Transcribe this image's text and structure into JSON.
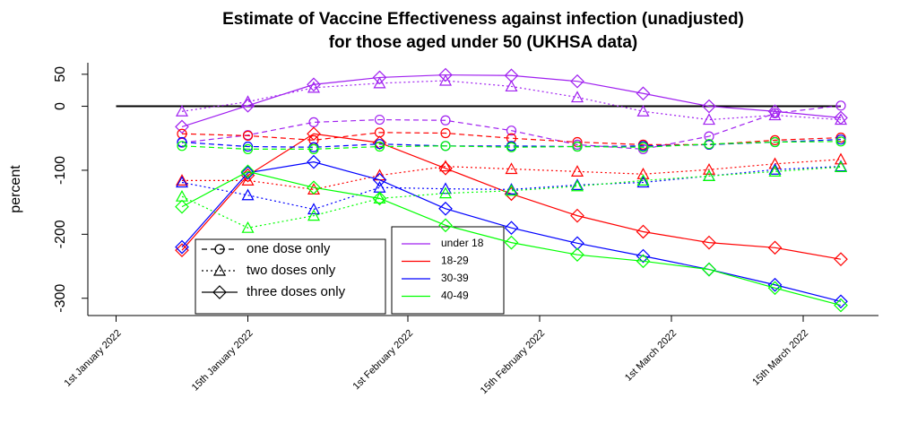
{
  "chart_data": {
    "type": "line",
    "title": [
      "Estimate of Vaccine Effectiveness against infection (unadjusted)",
      "for those aged under 50 (UKHSA data)"
    ],
    "y_label": "percent",
    "x": [
      "2022-01-08",
      "2022-01-15",
      "2022-01-22",
      "2022-01-29",
      "2022-02-05",
      "2022-02-12",
      "2022-02-19",
      "2022-02-26",
      "2022-03-05",
      "2022-03-12",
      "2022-03-19"
    ],
    "xlim": [
      "2021-12-29",
      "2022-03-23"
    ],
    "xticks": [
      {
        "value": "2022-01-01",
        "label": "1st January 2022"
      },
      {
        "value": "2022-01-15",
        "label": "15th January 2022"
      },
      {
        "value": "2022-02-01",
        "label": "1st February 2022"
      },
      {
        "value": "2022-02-15",
        "label": "15th February 2022"
      },
      {
        "value": "2022-03-01",
        "label": "1st March 2022"
      },
      {
        "value": "2022-03-15",
        "label": "15th March 2022"
      }
    ],
    "ylim": [
      -327,
      68
    ],
    "yticks": [
      50,
      0,
      -100,
      -200,
      -300
    ],
    "reference_line": {
      "y": 0,
      "x": [
        "2022-01-01",
        "2022-03-19"
      ],
      "color": "#000000"
    },
    "dose_legend": [
      {
        "name": "one dose only",
        "marker": "circle",
        "dash": "dashed"
      },
      {
        "name": "two doses only",
        "marker": "triangle",
        "dash": "dotted"
      },
      {
        "name": "three doses only",
        "marker": "diamond",
        "dash": "solid"
      }
    ],
    "series": [
      {
        "name": "under 18",
        "color": "#a020f0",
        "doses": [
          {
            "values": [
              -57,
              -45,
              -25,
              -21,
              -22,
              -38,
              -60,
              -67,
              -47,
              -11,
              1
            ]
          },
          {
            "values": [
              -8,
              7,
              29,
              36,
              40,
              31,
              14,
              -8,
              -21,
              -14,
              -21
            ]
          },
          {
            "values": [
              -32,
              1,
              34,
              45,
              49,
              48,
              39,
              20,
              0,
              -8,
              -18
            ]
          }
        ]
      },
      {
        "name": "18-29",
        "color": "#ff0000",
        "doses": [
          {
            "values": [
              -43,
              -46,
              -53,
              -41,
              -42,
              -50,
              -56,
              -60,
              -60,
              -53,
              -49
            ]
          },
          {
            "values": [
              -116,
              -116,
              -130,
              -108,
              -94,
              -98,
              -102,
              -106,
              -99,
              -90,
              -83
            ]
          },
          {
            "values": [
              -225,
              -108,
              -43,
              -57,
              -97,
              -137,
              -171,
              -196,
              -213,
              -221,
              -239
            ]
          }
        ]
      },
      {
        "name": "30-39",
        "color": "#0000ff",
        "doses": [
          {
            "values": [
              -56,
              -63,
              -64,
              -59,
              -62,
              -62,
              -63,
              -62,
              -60,
              -56,
              -52
            ]
          },
          {
            "values": [
              -119,
              -139,
              -161,
              -127,
              -129,
              -130,
              -123,
              -119,
              -109,
              -99,
              -94
            ]
          },
          {
            "values": [
              -220,
              -104,
              -87,
              -115,
              -160,
              -190,
              -214,
              -234,
              -255,
              -279,
              -305
            ]
          }
        ]
      },
      {
        "name": "40-49",
        "color": "#00ff00",
        "doses": [
          {
            "values": [
              -62,
              -67,
              -67,
              -63,
              -62,
              -64,
              -63,
              -64,
              -59,
              -56,
              -55
            ]
          },
          {
            "values": [
              -141,
              -190,
              -171,
              -144,
              -136,
              -132,
              -125,
              -116,
              -109,
              -102,
              -95
            ]
          },
          {
            "values": [
              -157,
              -102,
              -127,
              -144,
              -186,
              -213,
              -232,
              -242,
              -255,
              -284,
              -311
            ]
          }
        ]
      }
    ]
  }
}
